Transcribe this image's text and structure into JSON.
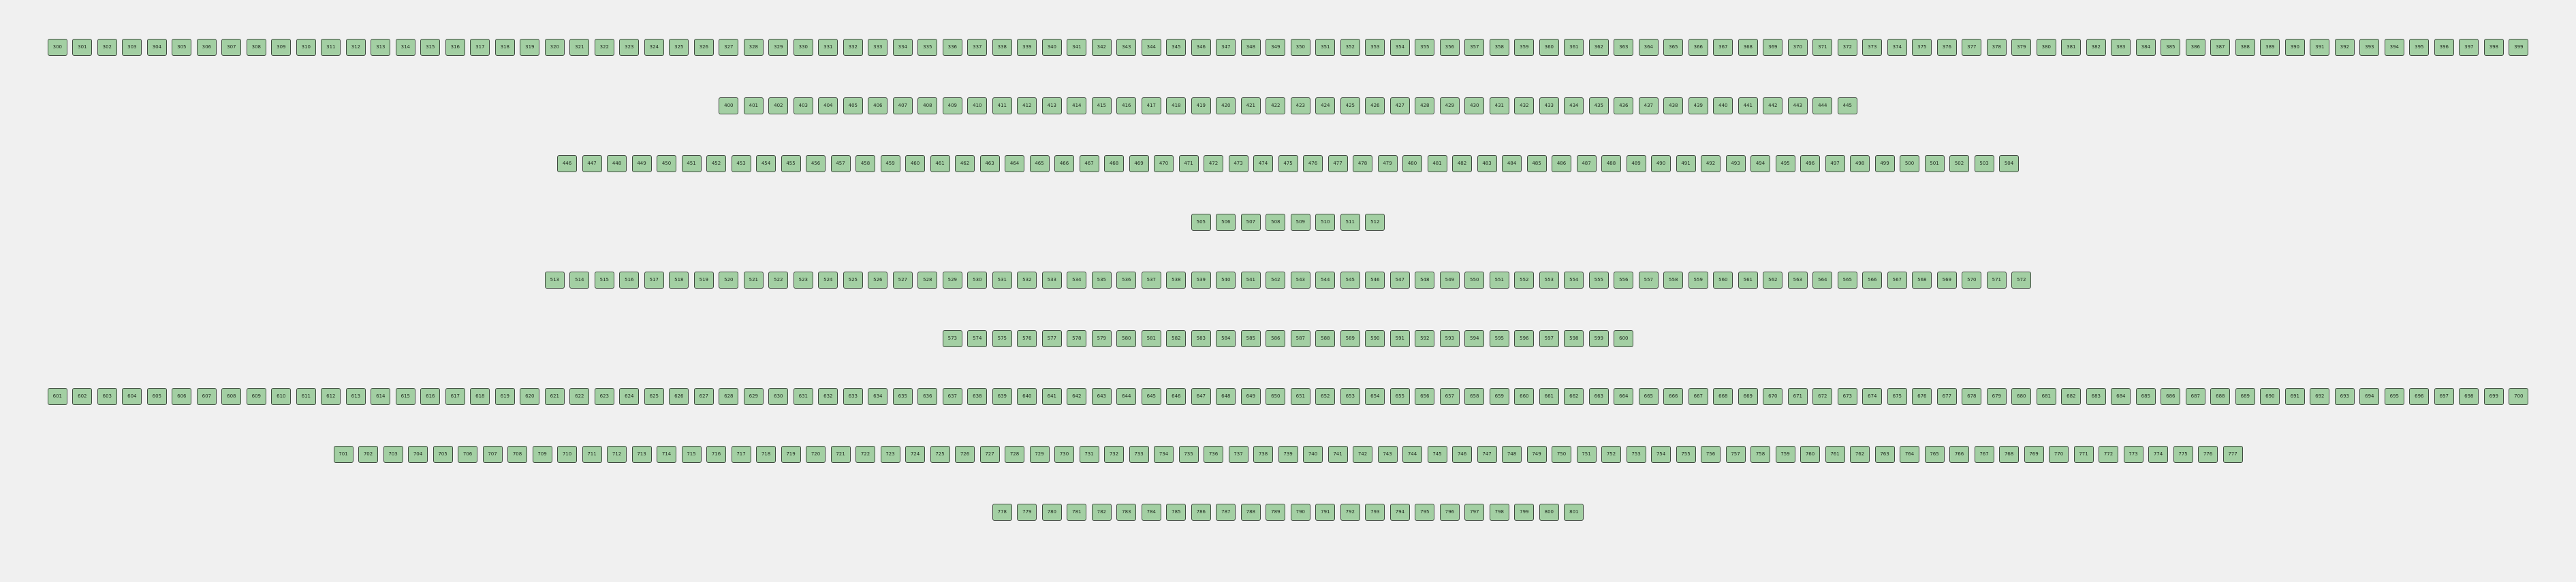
{
  "rows": [
    {
      "name": "row-1",
      "nodes": [
        "300",
        "301",
        "302",
        "303",
        "304",
        "305",
        "306",
        "307",
        "308",
        "309",
        "310",
        "311",
        "312",
        "313",
        "314",
        "315",
        "316",
        "317",
        "318",
        "319",
        "320",
        "321",
        "322",
        "323",
        "324",
        "325",
        "326",
        "327",
        "328",
        "329",
        "330",
        "331",
        "332",
        "333",
        "334",
        "335",
        "336",
        "337",
        "338",
        "339",
        "340",
        "341",
        "342",
        "343",
        "344",
        "345",
        "346",
        "347",
        "348",
        "349",
        "350",
        "351",
        "352",
        "353",
        "354",
        "355",
        "356",
        "357",
        "358",
        "359",
        "360",
        "361",
        "362",
        "363",
        "364",
        "365",
        "366",
        "367",
        "368",
        "369",
        "370",
        "371",
        "372",
        "373",
        "374",
        "375",
        "376",
        "377",
        "378",
        "379",
        "380",
        "381",
        "382",
        "383",
        "384",
        "385",
        "386",
        "387",
        "388",
        "389",
        "390",
        "391",
        "392",
        "393",
        "394",
        "395",
        "396",
        "397",
        "398",
        "399"
      ]
    },
    {
      "name": "row-2",
      "nodes": [
        "400",
        "401",
        "402",
        "403",
        "404",
        "405",
        "406",
        "407",
        "408",
        "409",
        "410",
        "411",
        "412",
        "413",
        "414",
        "415",
        "416",
        "417",
        "418",
        "419",
        "420",
        "421",
        "422",
        "423",
        "424",
        "425",
        "426",
        "427",
        "428",
        "429",
        "430",
        "431",
        "432",
        "433",
        "434",
        "435",
        "436",
        "437",
        "438",
        "439",
        "440",
        "441",
        "442",
        "443",
        "444",
        "445"
      ]
    },
    {
      "name": "row-3",
      "nodes": [
        "446",
        "447",
        "448",
        "449",
        "450",
        "451",
        "452",
        "453",
        "454",
        "455",
        "456",
        "457",
        "458",
        "459",
        "460",
        "461",
        "462",
        "463",
        "464",
        "465",
        "466",
        "467",
        "468",
        "469",
        "470",
        "471",
        "472",
        "473",
        "474",
        "475",
        "476",
        "477",
        "478",
        "479",
        "480",
        "481",
        "482",
        "483",
        "484",
        "485",
        "486",
        "487",
        "488",
        "489",
        "490",
        "491",
        "492",
        "493",
        "494",
        "495",
        "496",
        "497",
        "498",
        "499",
        "500",
        "501",
        "502",
        "503",
        "504"
      ]
    },
    {
      "name": "row-4",
      "nodes": [
        "505",
        "506",
        "507",
        "508",
        "509",
        "510",
        "511",
        "512"
      ]
    },
    {
      "name": "row-5",
      "nodes": [
        "513",
        "514",
        "515",
        "516",
        "517",
        "518",
        "519",
        "520",
        "521",
        "522",
        "523",
        "524",
        "525",
        "526",
        "527",
        "528",
        "529",
        "530",
        "531",
        "532",
        "533",
        "534",
        "535",
        "536",
        "537",
        "538",
        "539",
        "540",
        "541",
        "542",
        "543",
        "544",
        "545",
        "546",
        "547",
        "548",
        "549",
        "550",
        "551",
        "552",
        "553",
        "554",
        "555",
        "556",
        "557",
        "558",
        "559",
        "560",
        "561",
        "562",
        "563",
        "564",
        "565",
        "566",
        "567",
        "568",
        "569",
        "570",
        "571",
        "572"
      ]
    },
    {
      "name": "row-6",
      "nodes": [
        "573",
        "574",
        "575",
        "576",
        "577",
        "578",
        "579",
        "580",
        "581",
        "582",
        "583",
        "584",
        "585",
        "586",
        "587",
        "588",
        "589",
        "590",
        "591",
        "592",
        "593",
        "594",
        "595",
        "596",
        "597",
        "598",
        "599",
        "600"
      ]
    },
    {
      "name": "row-7",
      "nodes": [
        "601",
        "602",
        "603",
        "604",
        "605",
        "606",
        "607",
        "608",
        "609",
        "610",
        "611",
        "612",
        "613",
        "614",
        "615",
        "616",
        "617",
        "618",
        "619",
        "620",
        "621",
        "622",
        "623",
        "624",
        "625",
        "626",
        "627",
        "628",
        "629",
        "630",
        "631",
        "632",
        "633",
        "634",
        "635",
        "636",
        "637",
        "638",
        "639",
        "640",
        "641",
        "642",
        "643",
        "644",
        "645",
        "646",
        "647",
        "648",
        "649",
        "650",
        "651",
        "652",
        "653",
        "654",
        "655",
        "656",
        "657",
        "658",
        "659",
        "660",
        "661",
        "662",
        "663",
        "664",
        "665",
        "666",
        "667",
        "668",
        "669",
        "670",
        "671",
        "672",
        "673",
        "674",
        "675",
        "676",
        "677",
        "678",
        "679",
        "680",
        "681",
        "682",
        "683",
        "684",
        "685",
        "686",
        "687",
        "688",
        "689",
        "690",
        "691",
        "692",
        "693",
        "694",
        "695",
        "696",
        "697",
        "698",
        "699",
        "700"
      ]
    },
    {
      "name": "row-8",
      "nodes": [
        "701",
        "702",
        "703",
        "704",
        "705",
        "706",
        "707",
        "708",
        "709",
        "710",
        "711",
        "712",
        "713",
        "714",
        "715",
        "716",
        "717",
        "718",
        "719",
        "720",
        "721",
        "722",
        "723",
        "724",
        "725",
        "726",
        "727",
        "728",
        "729",
        "730",
        "731",
        "732",
        "733",
        "734",
        "735",
        "736",
        "737",
        "738",
        "739",
        "740",
        "741",
        "742",
        "743",
        "744",
        "745",
        "746",
        "747",
        "748",
        "749",
        "750",
        "751",
        "752",
        "753",
        "754",
        "755",
        "756",
        "757",
        "758",
        "759",
        "760",
        "761",
        "762",
        "763",
        "764",
        "765",
        "766",
        "767",
        "768",
        "769",
        "770",
        "771",
        "772",
        "773",
        "774",
        "775",
        "776",
        "777"
      ]
    },
    {
      "name": "row-9",
      "nodes": [
        "778",
        "779",
        "780",
        "781",
        "782",
        "783",
        "784",
        "785",
        "786",
        "787",
        "788",
        "789",
        "790",
        "791",
        "792",
        "793",
        "794",
        "795",
        "796",
        "797",
        "798",
        "799",
        "800",
        "801"
      ]
    }
  ]
}
